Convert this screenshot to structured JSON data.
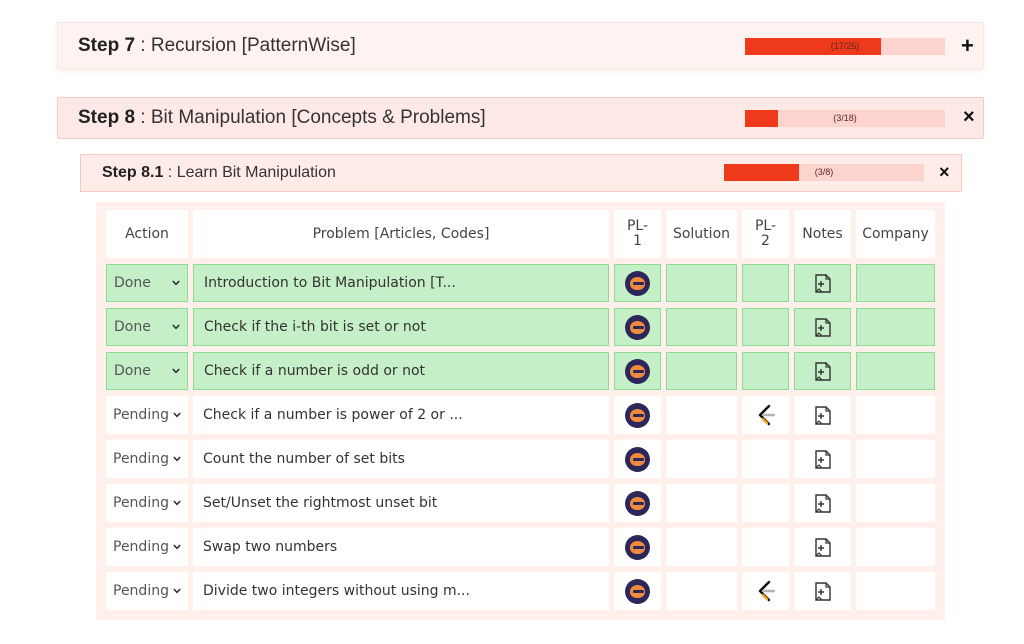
{
  "steps": [
    {
      "number": "Step 7",
      "title": " : Recursion [PatternWise]",
      "progress_text": "(17/25)",
      "progress": 0.68,
      "toggle": "+"
    },
    {
      "number": "Step 8",
      "title": " : Bit Manipulation [Concepts & Problems]",
      "progress_text": "(3/18)",
      "progress": 0.167,
      "toggle": "×"
    }
  ],
  "substep": {
    "number": "Step 8.1",
    "title": " : Learn Bit Manipulation",
    "progress_text": "(3/8)",
    "progress": 0.375,
    "toggle": "×"
  },
  "table": {
    "headers": [
      "Action",
      "Problem [Articles, Codes]",
      "PL-\n1",
      "Solution",
      "PL-\n2",
      "Notes",
      "Company"
    ],
    "rows": [
      {
        "action": "Done",
        "problem": "Introduction to Bit Manipulation [T...",
        "pl1": "coding-ninjas-icon",
        "pl2": "",
        "done": true
      },
      {
        "action": "Done",
        "problem": "Check if the i-th bit is set or not",
        "pl1": "coding-ninjas-icon",
        "pl2": "",
        "done": true
      },
      {
        "action": "Done",
        "problem": "Check if a number is odd or not",
        "pl1": "coding-ninjas-icon",
        "pl2": "",
        "done": true
      },
      {
        "action": "Pending",
        "problem": "Check if a number is power of 2 or ...",
        "pl1": "coding-ninjas-icon",
        "pl2": "leetcode-icon",
        "done": false
      },
      {
        "action": "Pending",
        "problem": "Count the number of set bits",
        "pl1": "coding-ninjas-icon",
        "pl2": "",
        "done": false
      },
      {
        "action": "Pending",
        "problem": "Set/Unset the rightmost unset bit",
        "pl1": "coding-ninjas-icon",
        "pl2": "",
        "done": false
      },
      {
        "action": "Pending",
        "problem": "Swap two numbers",
        "pl1": "coding-ninjas-icon",
        "pl2": "",
        "done": false
      },
      {
        "action": "Pending",
        "problem": "Divide two integers without using m...",
        "pl1": "coding-ninjas-icon",
        "pl2": "leetcode-icon",
        "done": false
      }
    ]
  },
  "colors": {
    "accent": "#ee3a1a",
    "done_bg": "#c5efc6",
    "done_border": "#8edb91",
    "coding_ninjas": "#2d2759"
  }
}
